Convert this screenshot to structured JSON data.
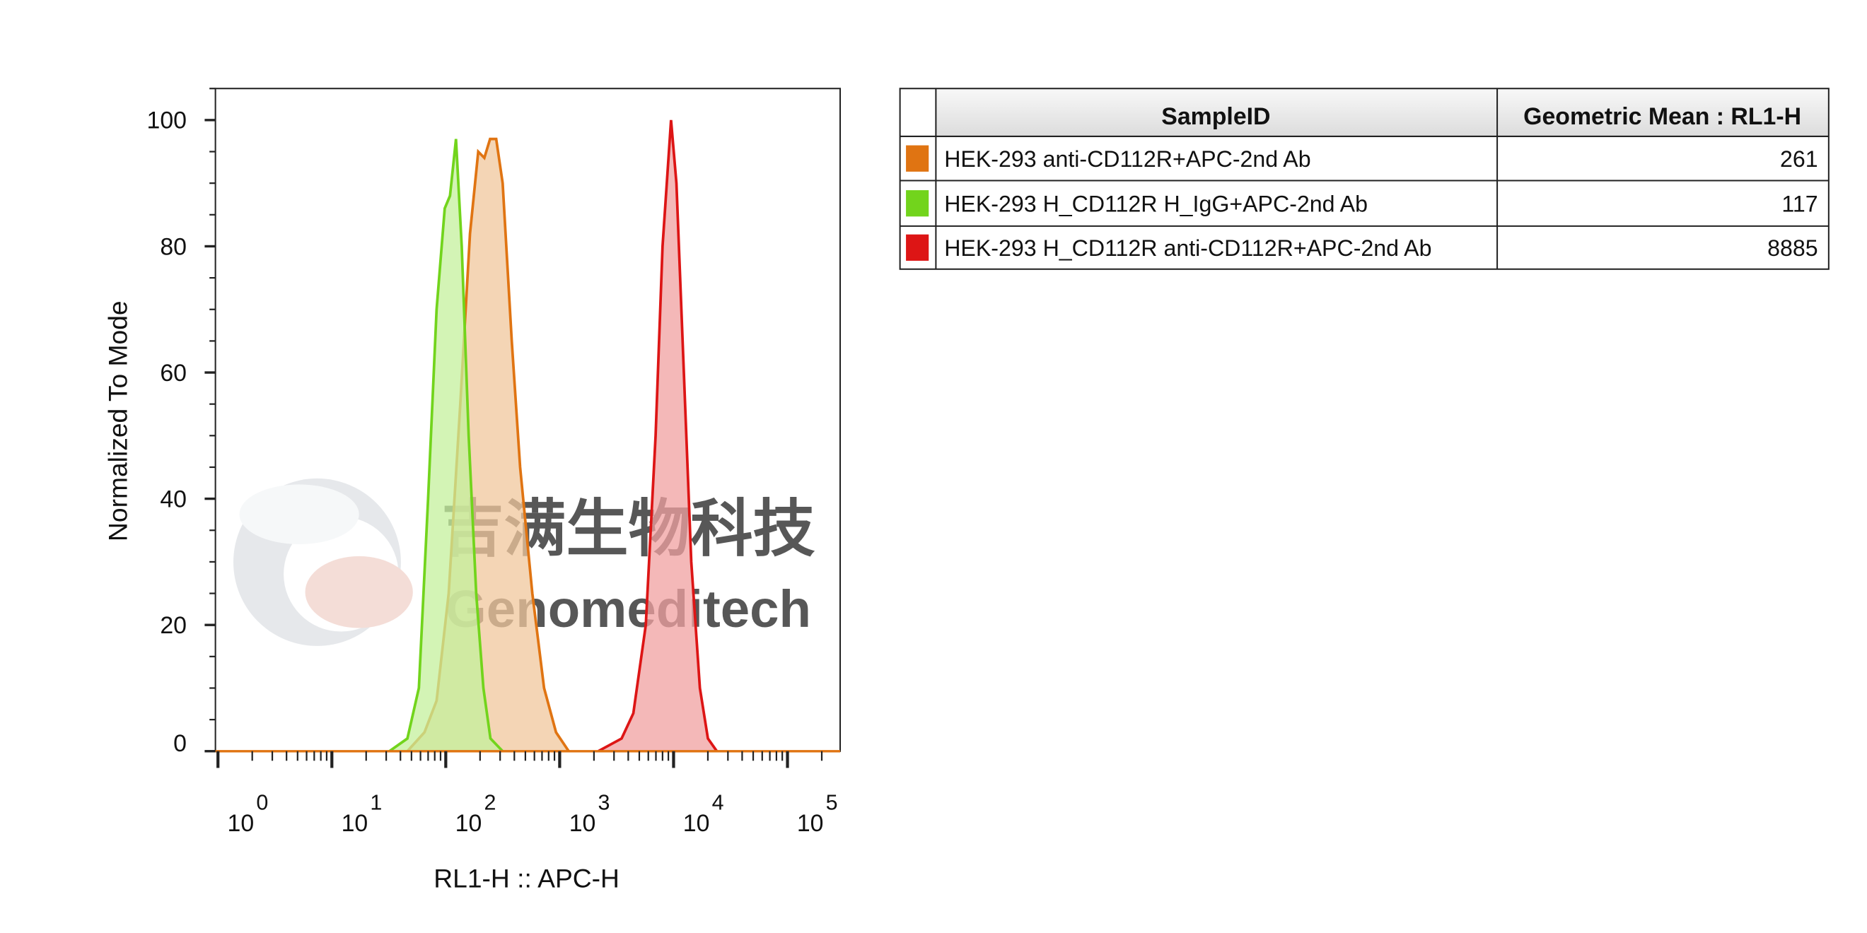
{
  "chart_data": {
    "type": "histogram-overlay",
    "x_label": "RL1-H :: APC-H",
    "y_label": "Normalized To Mode",
    "log_x": true,
    "xlim": [
      0.95,
      290000
    ],
    "ylim": [
      0,
      105
    ],
    "xticks": [
      {
        "value": 1,
        "label": "10",
        "sup": "0"
      },
      {
        "value": 10,
        "label": "10",
        "sup": "1"
      },
      {
        "value": 100,
        "label": "10",
        "sup": "2"
      },
      {
        "value": 1000,
        "label": "10",
        "sup": "3"
      },
      {
        "value": 10000,
        "label": "10",
        "sup": "4"
      },
      {
        "value": 100000,
        "label": "10",
        "sup": "5"
      }
    ],
    "xminorticks": [
      2,
      3,
      4,
      5,
      6,
      7,
      8,
      9,
      20,
      30,
      40,
      50,
      60,
      70,
      80,
      90,
      200,
      300,
      400,
      500,
      600,
      700,
      800,
      900,
      2000,
      3000,
      4000,
      5000,
      6000,
      7000,
      8000,
      9000,
      20000,
      30000,
      40000,
      50000,
      60000,
      70000,
      80000,
      90000,
      200000
    ],
    "yticks": [
      0,
      20,
      40,
      60,
      80,
      100
    ],
    "yminorticks": [
      5,
      10,
      15,
      25,
      30,
      35,
      45,
      50,
      55,
      65,
      70,
      75,
      85,
      90,
      95,
      105
    ],
    "table_header": [
      "SampleID",
      "Geometric Mean : RL1-H"
    ],
    "series": [
      {
        "name": "HEK-293 anti-CD112R+APC-2nd Ab",
        "color": "#e07412",
        "fill": "#f0c79c",
        "geo_mean": 261,
        "x": [
          46,
          65,
          83,
          106,
          134,
          163,
          193,
          218,
          245,
          277,
          316,
          380,
          450,
          575,
          730,
          930,
          1200
        ],
        "values": [
          0,
          3,
          8,
          25,
          55,
          82,
          95,
          94,
          97,
          97,
          90,
          65,
          45,
          25,
          10,
          3,
          0
        ]
      },
      {
        "name": "HEK-293 H_CD112R H_IgG+APC-2nd Ab",
        "color": "#72d41c",
        "fill": "#c4f09c",
        "geo_mean": 117,
        "x": [
          32,
          46,
          58,
          70,
          83,
          98,
          109,
          123,
          138,
          159,
          185,
          214,
          247,
          316
        ],
        "values": [
          0,
          2,
          10,
          40,
          70,
          86,
          88,
          97,
          80,
          50,
          25,
          10,
          2,
          0
        ]
      },
      {
        "name": "HEK-293 H_CD112R anti-CD112R+APC-2nd Ab",
        "color": "#dd1515",
        "fill": "#f0a0a0",
        "geo_mean": 8885,
        "x": [
          2180,
          3500,
          4430,
          5700,
          6950,
          8000,
          9500,
          10600,
          12300,
          14300,
          17000,
          20000,
          24000
        ],
        "values": [
          0,
          2,
          6,
          20,
          50,
          80,
          100,
          90,
          60,
          30,
          10,
          2,
          0
        ]
      }
    ],
    "watermark": [
      "吉满生物科技",
      "Genomeditech"
    ]
  }
}
